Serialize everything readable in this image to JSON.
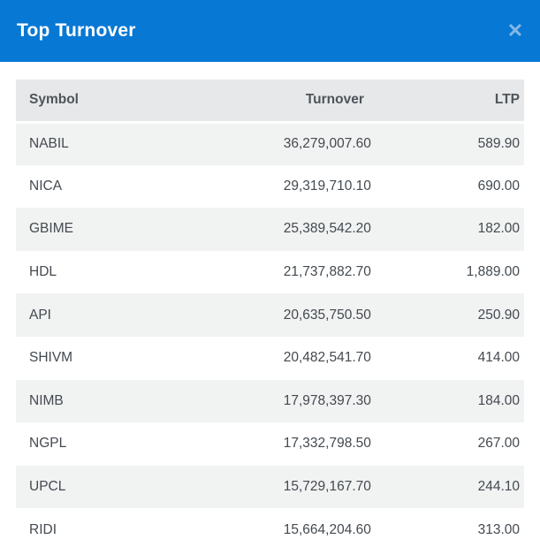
{
  "modal": {
    "title": "Top Turnover",
    "close_icon": "✕"
  },
  "table": {
    "columns": [
      {
        "key": "symbol",
        "label": "Symbol"
      },
      {
        "key": "turnover",
        "label": "Turnover"
      },
      {
        "key": "ltp",
        "label": "LTP"
      }
    ],
    "rows": [
      {
        "symbol": "NABIL",
        "turnover": "36,279,007.60",
        "ltp": "589.90"
      },
      {
        "symbol": "NICA",
        "turnover": "29,319,710.10",
        "ltp": "690.00"
      },
      {
        "symbol": "GBIME",
        "turnover": "25,389,542.20",
        "ltp": "182.00"
      },
      {
        "symbol": "HDL",
        "turnover": "21,737,882.70",
        "ltp": "1,889.00"
      },
      {
        "symbol": "API",
        "turnover": "20,635,750.50",
        "ltp": "250.90"
      },
      {
        "symbol": "SHIVM",
        "turnover": "20,482,541.70",
        "ltp": "414.00"
      },
      {
        "symbol": "NIMB",
        "turnover": "17,978,397.30",
        "ltp": "184.00"
      },
      {
        "symbol": "NGPL",
        "turnover": "17,332,798.50",
        "ltp": "267.00"
      },
      {
        "symbol": "UPCL",
        "turnover": "15,729,167.70",
        "ltp": "244.10"
      },
      {
        "symbol": "RIDI",
        "turnover": "15,664,204.60",
        "ltp": "313.00"
      }
    ]
  },
  "colors": {
    "header_bg": "#0778d4",
    "header_text": "#ffffff",
    "close_icon": "#84b7e7",
    "table_header_bg": "#e6e8e9",
    "row_stripe_bg": "#f1f2f2",
    "row_text": "#434a50"
  }
}
